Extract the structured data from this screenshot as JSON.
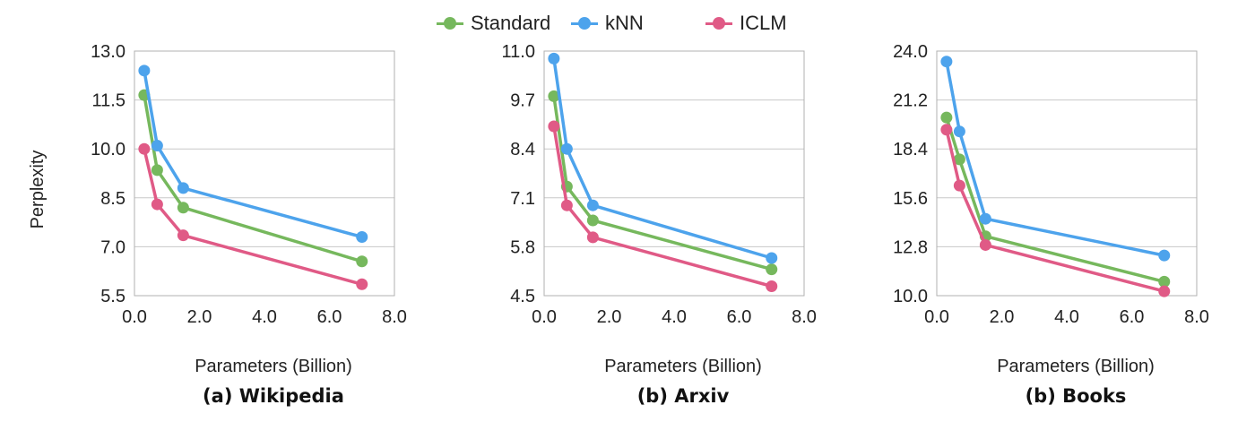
{
  "legend": [
    {
      "name": "Standard",
      "color": "#76b85d"
    },
    {
      "name": "kNN",
      "color": "#4da3ec"
    },
    {
      "name": "ICLM",
      "color": "#e05a86"
    }
  ],
  "chart_data": [
    {
      "type": "line",
      "caption": "(a) Wikipedia",
      "xlabel": "Parameters (Billion)",
      "ylabel": "Perplexity",
      "xlim": [
        0.0,
        8.0
      ],
      "ylim": [
        5.5,
        13.0
      ],
      "xticks": [
        "0.0",
        "2.0",
        "4.0",
        "6.0",
        "8.0"
      ],
      "yticks": [
        "13.0",
        "11.5",
        "10.0",
        "8.5",
        "7.0",
        "5.5"
      ],
      "grid": true,
      "series": [
        {
          "name": "Standard",
          "x": [
            0.3,
            0.7,
            1.5,
            7.0
          ],
          "y": [
            11.65,
            9.35,
            8.2,
            6.55
          ]
        },
        {
          "name": "kNN",
          "x": [
            0.3,
            0.7,
            1.5,
            7.0
          ],
          "y": [
            12.4,
            10.1,
            8.8,
            7.3
          ]
        },
        {
          "name": "ICLM",
          "x": [
            0.3,
            0.7,
            1.5,
            7.0
          ],
          "y": [
            10.0,
            8.3,
            7.35,
            5.85
          ]
        }
      ]
    },
    {
      "type": "line",
      "caption": "(b) Arxiv",
      "xlabel": "Parameters (Billion)",
      "ylabel": "",
      "xlim": [
        0.0,
        8.0
      ],
      "ylim": [
        4.5,
        11.0
      ],
      "xticks": [
        "0.0",
        "2.0",
        "4.0",
        "6.0",
        "8.0"
      ],
      "yticks": [
        "11.0",
        "9.7",
        "8.4",
        "7.1",
        "5.8",
        "4.5"
      ],
      "grid": true,
      "series": [
        {
          "name": "Standard",
          "x": [
            0.3,
            0.7,
            1.5,
            7.0
          ],
          "y": [
            9.8,
            7.4,
            6.5,
            5.2
          ]
        },
        {
          "name": "kNN",
          "x": [
            0.3,
            0.7,
            1.5,
            7.0
          ],
          "y": [
            10.8,
            8.4,
            6.9,
            5.5
          ]
        },
        {
          "name": "ICLM",
          "x": [
            0.3,
            0.7,
            1.5,
            7.0
          ],
          "y": [
            9.0,
            6.9,
            6.05,
            4.75
          ]
        }
      ]
    },
    {
      "type": "line",
      "caption": "(b) Books",
      "xlabel": "Parameters (Billion)",
      "ylabel": "",
      "xlim": [
        0.0,
        8.0
      ],
      "ylim": [
        10.0,
        24.0
      ],
      "xticks": [
        "0.0",
        "2.0",
        "4.0",
        "6.0",
        "8.0"
      ],
      "yticks": [
        "24.0",
        "21.2",
        "18.4",
        "15.6",
        "12.8",
        "10.0"
      ],
      "grid": true,
      "series": [
        {
          "name": "Standard",
          "x": [
            0.3,
            0.7,
            1.5,
            7.0
          ],
          "y": [
            20.2,
            17.8,
            13.4,
            10.8
          ]
        },
        {
          "name": "kNN",
          "x": [
            0.3,
            0.7,
            1.5,
            7.0
          ],
          "y": [
            23.4,
            19.4,
            14.4,
            12.3
          ]
        },
        {
          "name": "ICLM",
          "x": [
            0.3,
            0.7,
            1.5,
            7.0
          ],
          "y": [
            19.5,
            16.3,
            12.9,
            10.25
          ]
        }
      ]
    }
  ]
}
